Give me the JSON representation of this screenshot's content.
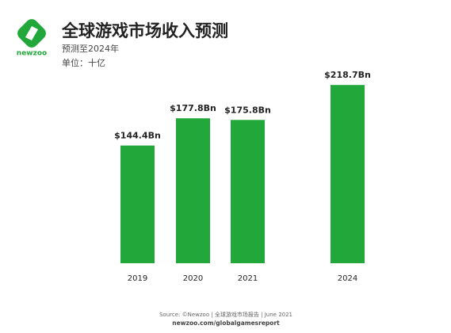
{
  "logo": "newzoo",
  "chart_data": {
    "type": "bar",
    "title": "全球游戏市场收入预测",
    "subtitle": "预测至2024年",
    "unit_note": "单位：十亿",
    "categories": [
      "2019",
      "2020",
      "2021",
      "2024"
    ],
    "values": [
      144.4,
      177.8,
      175.8,
      218.7
    ],
    "value_labels": [
      "$144.4Bn",
      "$177.8Bn",
      "$175.8Bn",
      "$218.7Bn"
    ],
    "color": "#22a73a"
  },
  "footer": {
    "source": "Source: ©Newzoo | 全球游戏市场报告 | June 2021",
    "url": "newzoo.com/globalgamesreport"
  }
}
